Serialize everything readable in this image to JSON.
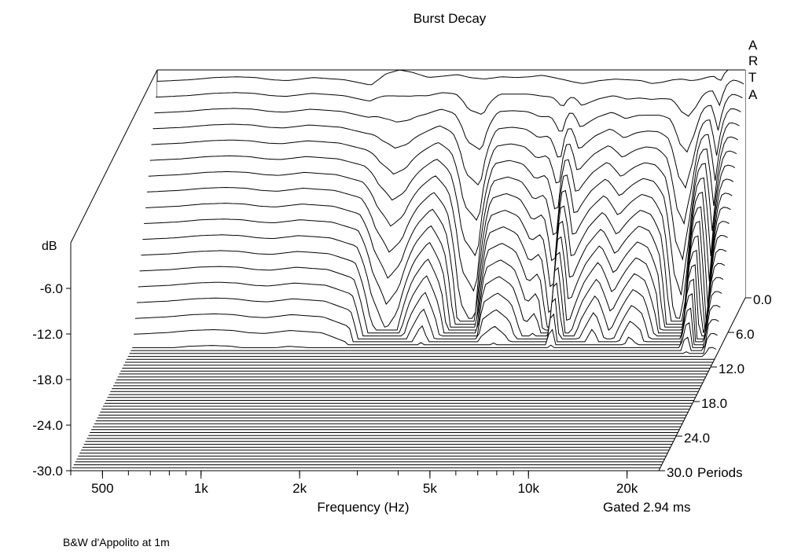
{
  "chart_data": {
    "type": "waterfall",
    "title": "Burst Decay",
    "brand_letters": [
      "A",
      "R",
      "T",
      "A"
    ],
    "xlabel": "Frequency (Hz)",
    "ylabel": "dB",
    "zlabel": "Periods",
    "gate_note": "Gated 2.94 ms",
    "footnote": "B&W d'Appolito at 1m",
    "x_scale": "log",
    "xlim": [
      400,
      25000
    ],
    "x_ticks": [
      {
        "value": 500,
        "label": "500"
      },
      {
        "value": 1000,
        "label": "1k"
      },
      {
        "value": 2000,
        "label": "2k"
      },
      {
        "value": 5000,
        "label": "5k"
      },
      {
        "value": 10000,
        "label": "10k"
      },
      {
        "value": 20000,
        "label": "20k"
      }
    ],
    "ylim": [
      -30,
      0
    ],
    "y_ticks": [
      {
        "value": -6,
        "label": "-6.0"
      },
      {
        "value": -12,
        "label": "-12.0"
      },
      {
        "value": -18,
        "label": "-18.0"
      },
      {
        "value": -24,
        "label": "-24.0"
      },
      {
        "value": -30,
        "label": "-30.0"
      }
    ],
    "zlim": [
      0,
      30
    ],
    "z_ticks": [
      {
        "value": 0,
        "label": "0.0"
      },
      {
        "value": 6,
        "label": "6.0"
      },
      {
        "value": 12,
        "label": "12.0"
      },
      {
        "value": 18,
        "label": "18.0"
      },
      {
        "value": 24,
        "label": "24.0"
      },
      {
        "value": 30,
        "label": "30.0"
      }
    ],
    "slice_count": 60,
    "spectrum_freqs": [
      400,
      500,
      600,
      700,
      800,
      900,
      1000,
      1100,
      1200,
      1500,
      1800,
      2000,
      2200,
      2400,
      2700,
      3000,
      3300,
      3600,
      4000,
      4500,
      5000,
      5500,
      6000,
      6500,
      7000,
      7500,
      8000,
      9000,
      10000,
      11000,
      12000,
      13000,
      14000,
      15000,
      16000,
      17000,
      18000,
      19000,
      20000,
      21000,
      22000,
      23000,
      24000,
      25000
    ],
    "initial_level_db": [
      -1.5,
      -1.3,
      -1.0,
      -0.9,
      -1.0,
      -1.3,
      -1.4,
      -1.2,
      -1.0,
      -1.3,
      -2.0,
      -0.5,
      0.0,
      -0.3,
      -1.0,
      -0.8,
      -0.6,
      -1.0,
      -1.2,
      -0.9,
      -1.0,
      -0.9,
      -0.7,
      -1.0,
      -1.3,
      -1.6,
      -1.8,
      -1.4,
      -1.2,
      -1.3,
      -1.4,
      -1.8,
      -1.6,
      -1.3,
      -1.2,
      -1.4,
      -1.3,
      -1.0,
      -0.8,
      -1.5,
      0.2,
      0.6,
      0.4,
      0.0
    ],
    "decay_time_periods": [
      9.0,
      9.0,
      9.0,
      9.0,
      9.0,
      9.0,
      9.0,
      9.0,
      9.0,
      9.0,
      8.8,
      6.0,
      5.0,
      5.5,
      7.5,
      8.5,
      7.0,
      4.0,
      3.5,
      8.0,
      8.5,
      8.0,
      6.5,
      7.0,
      4.5,
      10.0,
      6.0,
      7.5,
      8.5,
      7.0,
      8.0,
      9.0,
      8.5,
      7.0,
      4.0,
      3.5,
      5.0,
      9.0,
      10.5,
      5.0,
      7.5,
      10.0,
      10.5,
      10.5
    ]
  }
}
